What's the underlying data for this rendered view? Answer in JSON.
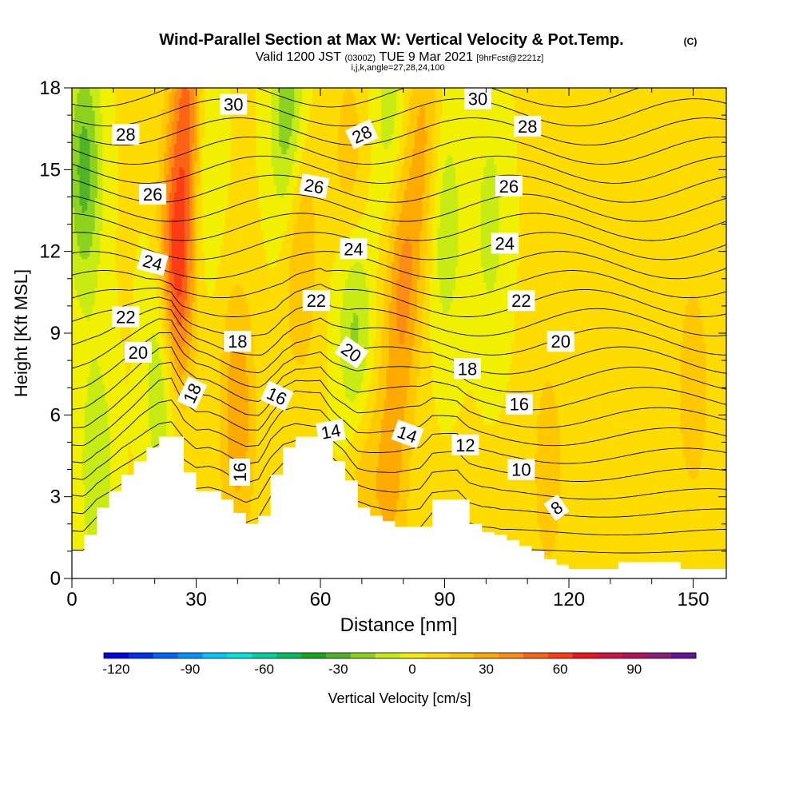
{
  "title": {
    "main": "Wind-Parallel Section at Max W: Vertical Velocity & Pot.Temp.",
    "copyright": "(C)",
    "valid_prefix": "Valid 1200 JST",
    "valid_utc": "(0300Z)",
    "valid_date": "TUE 9 Mar 2021",
    "forecast": "[9hrFcst@2221z]",
    "indices": "i,j,k,angle=27,28,24,100"
  },
  "chart_data": {
    "type": "heatmap",
    "title": "Wind-Parallel Section at Max W: Vertical Velocity & Pot.Temp.",
    "xlabel": "Distance [nm]",
    "ylabel": "Height [Kft MSL]",
    "xlim": [
      0,
      158
    ],
    "ylim": [
      0,
      18
    ],
    "xticks": [
      0,
      30,
      60,
      90,
      120,
      150
    ],
    "yticks": [
      0,
      3,
      6,
      9,
      12,
      15,
      18
    ],
    "grid": false,
    "colorbar": {
      "label": "Vertical Velocity [cm/s]",
      "ticks": [
        -120,
        -90,
        -60,
        -30,
        0,
        30,
        60,
        90
      ],
      "min": -125,
      "step": 10,
      "colors": [
        "#0000e6",
        "#0030f0",
        "#0064ff",
        "#0096ff",
        "#00c8ff",
        "#00e6dc",
        "#00d2a0",
        "#00be64",
        "#14aa1e",
        "#50b428",
        "#8cd21e",
        "#c8eb14",
        "#f0f000",
        "#ffdc00",
        "#ffc800",
        "#ffaa00",
        "#ff8c14",
        "#ff6414",
        "#ff3c14",
        "#f0141e",
        "#d21446",
        "#b4145a",
        "#8c1e78",
        "#641496"
      ]
    },
    "terrain": {
      "distance_nm": [
        0,
        3,
        6,
        9,
        12,
        15,
        18,
        21,
        24,
        27,
        30,
        33,
        36,
        39,
        42,
        45,
        48,
        51,
        54,
        57,
        60,
        63,
        66,
        69,
        72,
        75,
        78,
        81,
        84,
        87,
        90,
        93,
        96,
        99,
        102,
        105,
        108,
        111,
        114,
        117,
        120,
        123,
        126,
        129,
        132,
        135,
        138,
        141,
        144,
        147,
        150,
        153,
        156,
        158
      ],
      "height_kft": [
        1.0,
        1.6,
        2.6,
        3.2,
        3.8,
        4.3,
        4.8,
        5.2,
        5.2,
        3.9,
        3.2,
        3.2,
        2.9,
        2.4,
        2.0,
        2.3,
        3.8,
        4.8,
        5.2,
        5.2,
        5.2,
        4.3,
        3.6,
        2.6,
        2.3,
        2.1,
        1.9,
        1.9,
        1.9,
        2.9,
        2.9,
        2.9,
        2.0,
        1.7,
        1.6,
        1.4,
        1.2,
        1.0,
        0.7,
        0.5,
        0.35,
        0.35,
        0.35,
        0.35,
        0.6,
        0.6,
        0.6,
        0.6,
        0.6,
        0.35,
        0.35,
        0.35,
        0.35,
        0.6
      ]
    },
    "vertical_velocity_features_cm_s": [
      {
        "type": "updraft",
        "x_nm": 25,
        "z_kft": 11,
        "peak": 60
      },
      {
        "type": "updraft",
        "x_nm": 28.5,
        "z_kft": 17,
        "peak": 55
      },
      {
        "type": "updraft",
        "x_nm": 40,
        "z_kft": 6,
        "peak": 28
      },
      {
        "type": "updraft",
        "x_nm": 55,
        "z_kft": 12,
        "peak": 22
      },
      {
        "type": "updraft",
        "x_nm": 67,
        "z_kft": 14,
        "peak": 28
      },
      {
        "type": "updraft",
        "x_nm": 80,
        "z_kft": 11,
        "peak": 32
      },
      {
        "type": "updraft",
        "x_nm": 85,
        "z_kft": 16,
        "peak": 22
      },
      {
        "type": "updraft",
        "x_nm": 70,
        "z_kft": 4,
        "peak": 22
      },
      {
        "type": "updraft",
        "x_nm": 77,
        "z_kft": 4,
        "peak": 22
      },
      {
        "type": "updraft",
        "x_nm": 115,
        "z_kft": 4,
        "peak": 15
      },
      {
        "type": "updraft",
        "x_nm": 150,
        "z_kft": 7,
        "peak": 16
      },
      {
        "type": "downdraft",
        "x_nm": 3,
        "z_kft": 15,
        "peak": -35
      },
      {
        "type": "downdraft",
        "x_nm": 22,
        "z_kft": 8,
        "peak": -30
      },
      {
        "type": "downdraft",
        "x_nm": 31,
        "z_kft": 16,
        "peak": -32
      },
      {
        "type": "downdraft",
        "x_nm": 52,
        "z_kft": 17,
        "peak": -30
      },
      {
        "type": "downdraft",
        "x_nm": 69,
        "z_kft": 8,
        "peak": -25
      },
      {
        "type": "downdraft",
        "x_nm": 67,
        "z_kft": 12,
        "peak": -20
      },
      {
        "type": "downdraft",
        "x_nm": 77,
        "z_kft": 17,
        "peak": -18
      },
      {
        "type": "downdraft",
        "x_nm": 90,
        "z_kft": 13,
        "peak": -20
      },
      {
        "type": "downdraft",
        "x_nm": 101,
        "z_kft": 13,
        "peak": -15
      },
      {
        "type": "downdraft",
        "x_nm": 6,
        "z_kft": 4,
        "peak": -20
      }
    ],
    "potential_temperature_contour_labels": [
      {
        "value": "30",
        "x_nm": 39,
        "z_kft": 17.4,
        "angle": 0
      },
      {
        "value": "30",
        "x_nm": 98,
        "z_kft": 17.6,
        "angle": 0
      },
      {
        "value": "28",
        "x_nm": 13,
        "z_kft": 16.3,
        "angle": 0
      },
      {
        "value": "28",
        "x_nm": 70,
        "z_kft": 16.3,
        "angle": -25
      },
      {
        "value": "28",
        "x_nm": 110,
        "z_kft": 16.6,
        "angle": 0
      },
      {
        "value": "26",
        "x_nm": 19.5,
        "z_kft": 14.1,
        "angle": 0
      },
      {
        "value": "26",
        "x_nm": 58.5,
        "z_kft": 14.4,
        "angle": 10
      },
      {
        "value": "26",
        "x_nm": 105.5,
        "z_kft": 14.4,
        "angle": 0
      },
      {
        "value": "24",
        "x_nm": 19.5,
        "z_kft": 11.6,
        "angle": 15
      },
      {
        "value": "24",
        "x_nm": 68,
        "z_kft": 12.1,
        "angle": 0
      },
      {
        "value": "24",
        "x_nm": 104.5,
        "z_kft": 12.3,
        "angle": 0
      },
      {
        "value": "22",
        "x_nm": 13,
        "z_kft": 9.6,
        "angle": 0
      },
      {
        "value": "22",
        "x_nm": 59,
        "z_kft": 10.2,
        "angle": 0
      },
      {
        "value": "22",
        "x_nm": 108.5,
        "z_kft": 10.2,
        "angle": 0
      },
      {
        "value": "20",
        "x_nm": 16,
        "z_kft": 8.3,
        "angle": 0
      },
      {
        "value": "20",
        "x_nm": 67.5,
        "z_kft": 8.3,
        "angle": 35
      },
      {
        "value": "20",
        "x_nm": 118,
        "z_kft": 8.7,
        "angle": 0
      },
      {
        "value": "18",
        "x_nm": 40,
        "z_kft": 8.7,
        "angle": 0
      },
      {
        "value": "18",
        "x_nm": 95.5,
        "z_kft": 7.7,
        "angle": 0
      },
      {
        "value": "18",
        "x_nm": 29,
        "z_kft": 6.8,
        "angle": -65
      },
      {
        "value": "16",
        "x_nm": 49.5,
        "z_kft": 6.7,
        "angle": 25
      },
      {
        "value": "16",
        "x_nm": 108,
        "z_kft": 6.4,
        "angle": 0
      },
      {
        "value": "16",
        "x_nm": 40.5,
        "z_kft": 3.9,
        "angle": -90
      },
      {
        "value": "14",
        "x_nm": 62.5,
        "z_kft": 5.4,
        "angle": -10
      },
      {
        "value": "14",
        "x_nm": 81,
        "z_kft": 5.3,
        "angle": 20
      },
      {
        "value": "12",
        "x_nm": 95,
        "z_kft": 4.9,
        "angle": 0
      },
      {
        "value": "10",
        "x_nm": 108.5,
        "z_kft": 4.0,
        "angle": 0
      },
      {
        "value": "8",
        "x_nm": 117,
        "z_kft": 2.6,
        "angle": -35
      }
    ]
  }
}
